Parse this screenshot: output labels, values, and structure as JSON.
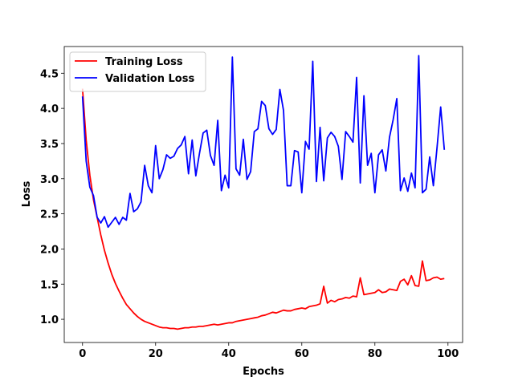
{
  "chart_data": {
    "type": "line",
    "title": "",
    "xlabel": "Epochs",
    "ylabel": "Loss",
    "xlim": [
      -5,
      104
    ],
    "ylim": [
      0.67,
      4.88
    ],
    "xticks": [
      0,
      20,
      40,
      60,
      80,
      100
    ],
    "yticks": [
      1.0,
      1.5,
      2.0,
      2.5,
      3.0,
      3.5,
      4.0,
      4.5
    ],
    "xtick_labels": [
      "0",
      "20",
      "40",
      "60",
      "80",
      "100"
    ],
    "ytick_labels": [
      "1.0",
      "1.5",
      "2.0",
      "2.5",
      "3.0",
      "3.5",
      "4.0",
      "4.5"
    ],
    "legend_position": "top-left",
    "grid": false,
    "x": [
      0,
      1,
      2,
      3,
      4,
      5,
      6,
      7,
      8,
      9,
      10,
      11,
      12,
      13,
      14,
      15,
      16,
      17,
      18,
      19,
      20,
      21,
      22,
      23,
      24,
      25,
      26,
      27,
      28,
      29,
      30,
      31,
      32,
      33,
      34,
      35,
      36,
      37,
      38,
      39,
      40,
      41,
      42,
      43,
      44,
      45,
      46,
      47,
      48,
      49,
      50,
      51,
      52,
      53,
      54,
      55,
      56,
      57,
      58,
      59,
      60,
      61,
      62,
      63,
      64,
      65,
      66,
      67,
      68,
      69,
      70,
      71,
      72,
      73,
      74,
      75,
      76,
      77,
      78,
      79,
      80,
      81,
      82,
      83,
      84,
      85,
      86,
      87,
      88,
      89,
      90,
      91,
      92,
      93,
      94,
      95,
      96,
      97,
      98,
      99
    ],
    "series": [
      {
        "name": "Training Loss",
        "color": "#ff0000",
        "values": [
          4.28,
          3.55,
          3.05,
          2.7,
          2.45,
          2.2,
          1.98,
          1.8,
          1.64,
          1.51,
          1.4,
          1.3,
          1.21,
          1.15,
          1.09,
          1.04,
          1.0,
          0.97,
          0.95,
          0.93,
          0.91,
          0.89,
          0.88,
          0.88,
          0.87,
          0.87,
          0.86,
          0.87,
          0.88,
          0.88,
          0.89,
          0.89,
          0.9,
          0.9,
          0.91,
          0.92,
          0.93,
          0.92,
          0.93,
          0.94,
          0.95,
          0.95,
          0.97,
          0.98,
          0.99,
          1.0,
          1.01,
          1.02,
          1.03,
          1.05,
          1.06,
          1.08,
          1.1,
          1.09,
          1.11,
          1.13,
          1.12,
          1.12,
          1.14,
          1.15,
          1.16,
          1.15,
          1.18,
          1.19,
          1.2,
          1.22,
          1.47,
          1.23,
          1.27,
          1.25,
          1.28,
          1.29,
          1.31,
          1.3,
          1.33,
          1.32,
          1.59,
          1.35,
          1.36,
          1.37,
          1.38,
          1.42,
          1.38,
          1.39,
          1.43,
          1.42,
          1.41,
          1.54,
          1.57,
          1.49,
          1.62,
          1.48,
          1.47,
          1.83,
          1.55,
          1.56,
          1.59,
          1.6,
          1.57,
          1.58
        ]
      },
      {
        "name": "Validation Loss",
        "color": "#0000ff",
        "values": [
          4.17,
          3.25,
          2.88,
          2.76,
          2.45,
          2.37,
          2.46,
          2.31,
          2.38,
          2.45,
          2.35,
          2.45,
          2.41,
          2.79,
          2.53,
          2.57,
          2.67,
          3.19,
          2.9,
          2.8,
          3.47,
          3.0,
          3.13,
          3.34,
          3.29,
          3.32,
          3.43,
          3.48,
          3.6,
          3.07,
          3.55,
          3.04,
          3.36,
          3.65,
          3.69,
          3.33,
          3.19,
          3.83,
          2.83,
          3.05,
          2.87,
          4.73,
          3.14,
          3.05,
          3.56,
          2.99,
          3.1,
          3.67,
          3.71,
          4.1,
          4.04,
          3.71,
          3.63,
          3.7,
          4.27,
          3.97,
          2.9,
          2.9,
          3.4,
          3.38,
          2.8,
          3.53,
          3.42,
          4.67,
          2.96,
          3.73,
          2.97,
          3.58,
          3.66,
          3.6,
          3.46,
          2.99,
          3.67,
          3.6,
          3.52,
          4.44,
          2.94,
          4.18,
          3.19,
          3.36,
          2.8,
          3.34,
          3.41,
          3.11,
          3.59,
          3.84,
          4.14,
          2.83,
          3.01,
          2.82,
          3.08,
          2.87,
          4.75,
          2.8,
          2.85,
          3.31,
          2.9,
          3.44,
          4.02,
          3.41
        ]
      }
    ]
  }
}
